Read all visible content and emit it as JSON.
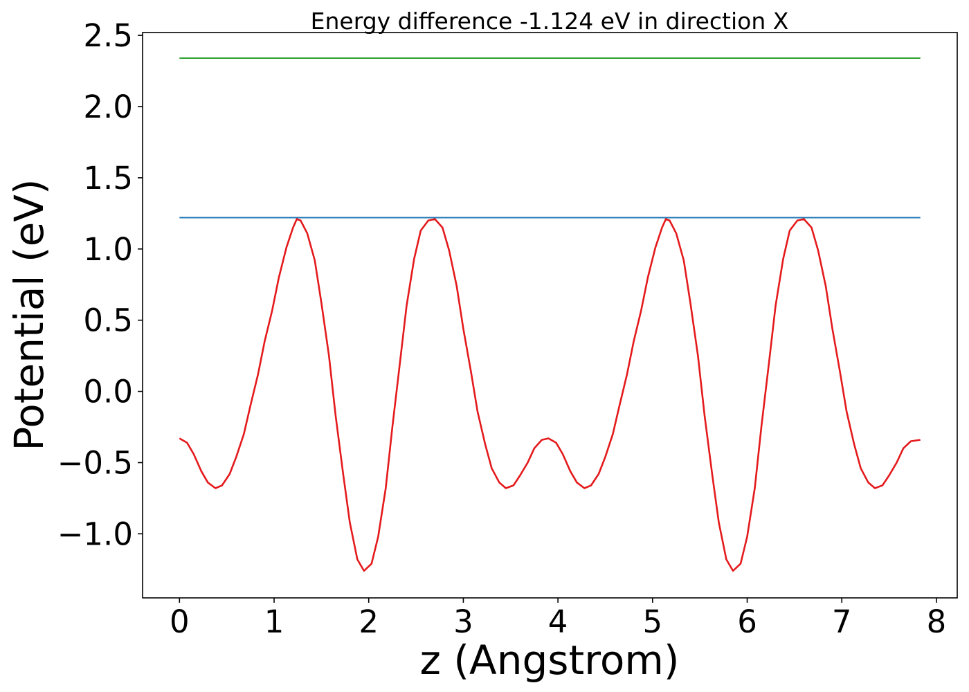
{
  "chart_data": {
    "type": "line",
    "title": "Energy difference -1.124 eV in direction X",
    "xlabel": "z (Angstrom)",
    "ylabel": "Potential (eV)",
    "xlim": [
      -0.39,
      8.22
    ],
    "ylim": [
      -1.45,
      2.52
    ],
    "grid": false,
    "x_ticks": [
      0,
      1,
      2,
      3,
      4,
      5,
      6,
      7,
      8
    ],
    "x_tick_labels": [
      "0",
      "1",
      "2",
      "3",
      "4",
      "5",
      "6",
      "7",
      "8"
    ],
    "y_ticks": [
      -1.0,
      -0.5,
      0.0,
      0.5,
      1.0,
      1.5,
      2.0,
      2.5
    ],
    "y_tick_labels": [
      "−1.0",
      "−0.5",
      "0.0",
      "0.5",
      "1.0",
      "1.5",
      "2.0",
      "2.5"
    ],
    "series": [
      {
        "color": "#2ca02c",
        "points": [
          [
            0.0,
            2.34
          ],
          [
            7.83,
            2.34
          ]
        ]
      },
      {
        "color": "#1f77b4",
        "points": [
          [
            0.0,
            1.22
          ],
          [
            7.83,
            1.22
          ]
        ]
      },
      {
        "color": "#e41a1c",
        "points": [
          [
            0.0,
            -0.33
          ],
          [
            0.08,
            -0.36
          ],
          [
            0.15,
            -0.44
          ],
          [
            0.23,
            -0.56
          ],
          [
            0.3,
            -0.64
          ],
          [
            0.38,
            -0.68
          ],
          [
            0.45,
            -0.66
          ],
          [
            0.53,
            -0.58
          ],
          [
            0.6,
            -0.46
          ],
          [
            0.68,
            -0.3
          ],
          [
            0.75,
            -0.1
          ],
          [
            0.83,
            0.12
          ],
          [
            0.9,
            0.35
          ],
          [
            0.98,
            0.57
          ],
          [
            1.05,
            0.8
          ],
          [
            1.13,
            1.01
          ],
          [
            1.2,
            1.15
          ],
          [
            1.24,
            1.21
          ],
          [
            1.28,
            1.2
          ],
          [
            1.35,
            1.11
          ],
          [
            1.43,
            0.92
          ],
          [
            1.5,
            0.62
          ],
          [
            1.58,
            0.25
          ],
          [
            1.65,
            -0.17
          ],
          [
            1.73,
            -0.58
          ],
          [
            1.8,
            -0.92
          ],
          [
            1.88,
            -1.18
          ],
          [
            1.95,
            -1.26
          ],
          [
            2.03,
            -1.21
          ],
          [
            2.1,
            -1.02
          ],
          [
            2.18,
            -0.68
          ],
          [
            2.25,
            -0.25
          ],
          [
            2.33,
            0.2
          ],
          [
            2.4,
            0.6
          ],
          [
            2.48,
            0.93
          ],
          [
            2.55,
            1.13
          ],
          [
            2.63,
            1.2
          ],
          [
            2.7,
            1.21
          ],
          [
            2.78,
            1.15
          ],
          [
            2.85,
            0.99
          ],
          [
            2.93,
            0.74
          ],
          [
            3.0,
            0.44
          ],
          [
            3.08,
            0.14
          ],
          [
            3.15,
            -0.14
          ],
          [
            3.23,
            -0.37
          ],
          [
            3.3,
            -0.54
          ],
          [
            3.38,
            -0.64
          ],
          [
            3.45,
            -0.68
          ],
          [
            3.53,
            -0.66
          ],
          [
            3.6,
            -0.59
          ],
          [
            3.68,
            -0.5
          ],
          [
            3.75,
            -0.4
          ],
          [
            3.83,
            -0.34
          ],
          [
            3.9,
            -0.33
          ],
          [
            3.98,
            -0.36
          ],
          [
            4.05,
            -0.44
          ],
          [
            4.13,
            -0.56
          ],
          [
            4.2,
            -0.64
          ],
          [
            4.28,
            -0.68
          ],
          [
            4.35,
            -0.66
          ],
          [
            4.43,
            -0.58
          ],
          [
            4.5,
            -0.46
          ],
          [
            4.58,
            -0.3
          ],
          [
            4.65,
            -0.1
          ],
          [
            4.73,
            0.12
          ],
          [
            4.8,
            0.35
          ],
          [
            4.88,
            0.57
          ],
          [
            4.95,
            0.8
          ],
          [
            5.03,
            1.01
          ],
          [
            5.1,
            1.15
          ],
          [
            5.14,
            1.21
          ],
          [
            5.18,
            1.2
          ],
          [
            5.25,
            1.11
          ],
          [
            5.33,
            0.92
          ],
          [
            5.4,
            0.62
          ],
          [
            5.48,
            0.25
          ],
          [
            5.55,
            -0.17
          ],
          [
            5.63,
            -0.58
          ],
          [
            5.7,
            -0.92
          ],
          [
            5.78,
            -1.18
          ],
          [
            5.85,
            -1.26
          ],
          [
            5.93,
            -1.21
          ],
          [
            6.0,
            -1.02
          ],
          [
            6.08,
            -0.68
          ],
          [
            6.15,
            -0.25
          ],
          [
            6.23,
            0.2
          ],
          [
            6.3,
            0.6
          ],
          [
            6.38,
            0.93
          ],
          [
            6.45,
            1.13
          ],
          [
            6.53,
            1.2
          ],
          [
            6.6,
            1.21
          ],
          [
            6.68,
            1.15
          ],
          [
            6.75,
            0.99
          ],
          [
            6.83,
            0.74
          ],
          [
            6.9,
            0.44
          ],
          [
            6.98,
            0.14
          ],
          [
            7.05,
            -0.14
          ],
          [
            7.13,
            -0.37
          ],
          [
            7.2,
            -0.54
          ],
          [
            7.28,
            -0.64
          ],
          [
            7.35,
            -0.68
          ],
          [
            7.43,
            -0.66
          ],
          [
            7.5,
            -0.59
          ],
          [
            7.58,
            -0.5
          ],
          [
            7.65,
            -0.4
          ],
          [
            7.73,
            -0.35
          ],
          [
            7.83,
            -0.34
          ]
        ]
      }
    ]
  }
}
